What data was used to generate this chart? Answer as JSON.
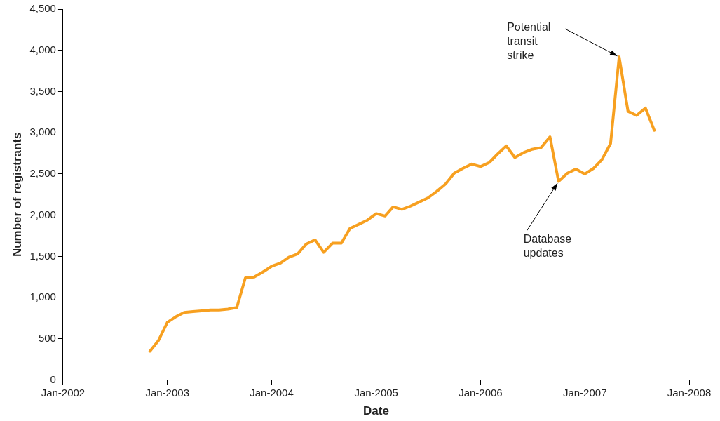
{
  "chart_data": {
    "type": "line",
    "xlabel": "Date",
    "ylabel": "Number of registrants",
    "x": [
      "2002-11",
      "2002-12",
      "2003-01",
      "2003-02",
      "2003-03",
      "2003-04",
      "2003-05",
      "2003-06",
      "2003-07",
      "2003-08",
      "2003-09",
      "2003-10",
      "2003-11",
      "2003-12",
      "2004-01",
      "2004-02",
      "2004-03",
      "2004-04",
      "2004-05",
      "2004-06",
      "2004-07",
      "2004-08",
      "2004-09",
      "2004-10",
      "2004-11",
      "2004-12",
      "2005-01",
      "2005-02",
      "2005-03",
      "2005-04",
      "2005-05",
      "2005-06",
      "2005-07",
      "2005-08",
      "2005-09",
      "2005-10",
      "2005-11",
      "2005-12",
      "2006-01",
      "2006-02",
      "2006-03",
      "2006-04",
      "2006-05",
      "2006-06",
      "2006-07",
      "2006-08",
      "2006-09",
      "2006-10",
      "2006-11",
      "2006-12",
      "2007-01",
      "2007-02",
      "2007-03",
      "2007-04",
      "2007-05",
      "2007-06",
      "2007-07",
      "2007-08",
      "2007-09"
    ],
    "series": [
      {
        "color": "#f7a020",
        "values": [
          350,
          480,
          700,
          770,
          820,
          830,
          840,
          850,
          850,
          860,
          880,
          1240,
          1250,
          1310,
          1380,
          1420,
          1490,
          1530,
          1650,
          1700,
          1550,
          1660,
          1660,
          1840,
          1890,
          1940,
          2020,
          1990,
          2100,
          2070,
          2110,
          2160,
          2210,
          2290,
          2380,
          2510,
          2570,
          2620,
          2590,
          2640,
          2740,
          2840,
          2700,
          2760,
          2800,
          2820,
          2950,
          2410,
          2510,
          2560,
          2500,
          2570,
          2670,
          2870,
          3920,
          3260,
          3210,
          3300,
          3030
        ]
      }
    ],
    "xlim": [
      "2002-01",
      "2008-01"
    ],
    "xticks": [
      {
        "value": "2002-01",
        "label": "Jan-2002"
      },
      {
        "value": "2003-01",
        "label": "Jan-2003"
      },
      {
        "value": "2004-01",
        "label": "Jan-2004"
      },
      {
        "value": "2005-01",
        "label": "Jan-2005"
      },
      {
        "value": "2006-01",
        "label": "Jan-2006"
      },
      {
        "value": "2007-01",
        "label": "Jan-2007"
      },
      {
        "value": "2008-01",
        "label": "Jan-2008"
      }
    ],
    "ylim": [
      0,
      4500
    ],
    "yticks": [
      {
        "value": 0,
        "label": "0"
      },
      {
        "value": 500,
        "label": "500"
      },
      {
        "value": 1000,
        "label": "1,000"
      },
      {
        "value": 1500,
        "label": "1,500"
      },
      {
        "value": 2000,
        "label": "2,000"
      },
      {
        "value": 2500,
        "label": "2,500"
      },
      {
        "value": 3000,
        "label": "3,000"
      },
      {
        "value": 3500,
        "label": "3,500"
      },
      {
        "value": 4000,
        "label": "4,000"
      },
      {
        "value": 4500,
        "label": "4,500"
      }
    ],
    "grid": false,
    "legend": false,
    "marker": "none",
    "line_style": "solid",
    "annotations": [
      {
        "text": "Potential transit strike",
        "x": "2007-05",
        "y": 3920
      },
      {
        "text": "Database updates",
        "x": "2006-10",
        "y": 2410
      }
    ]
  }
}
